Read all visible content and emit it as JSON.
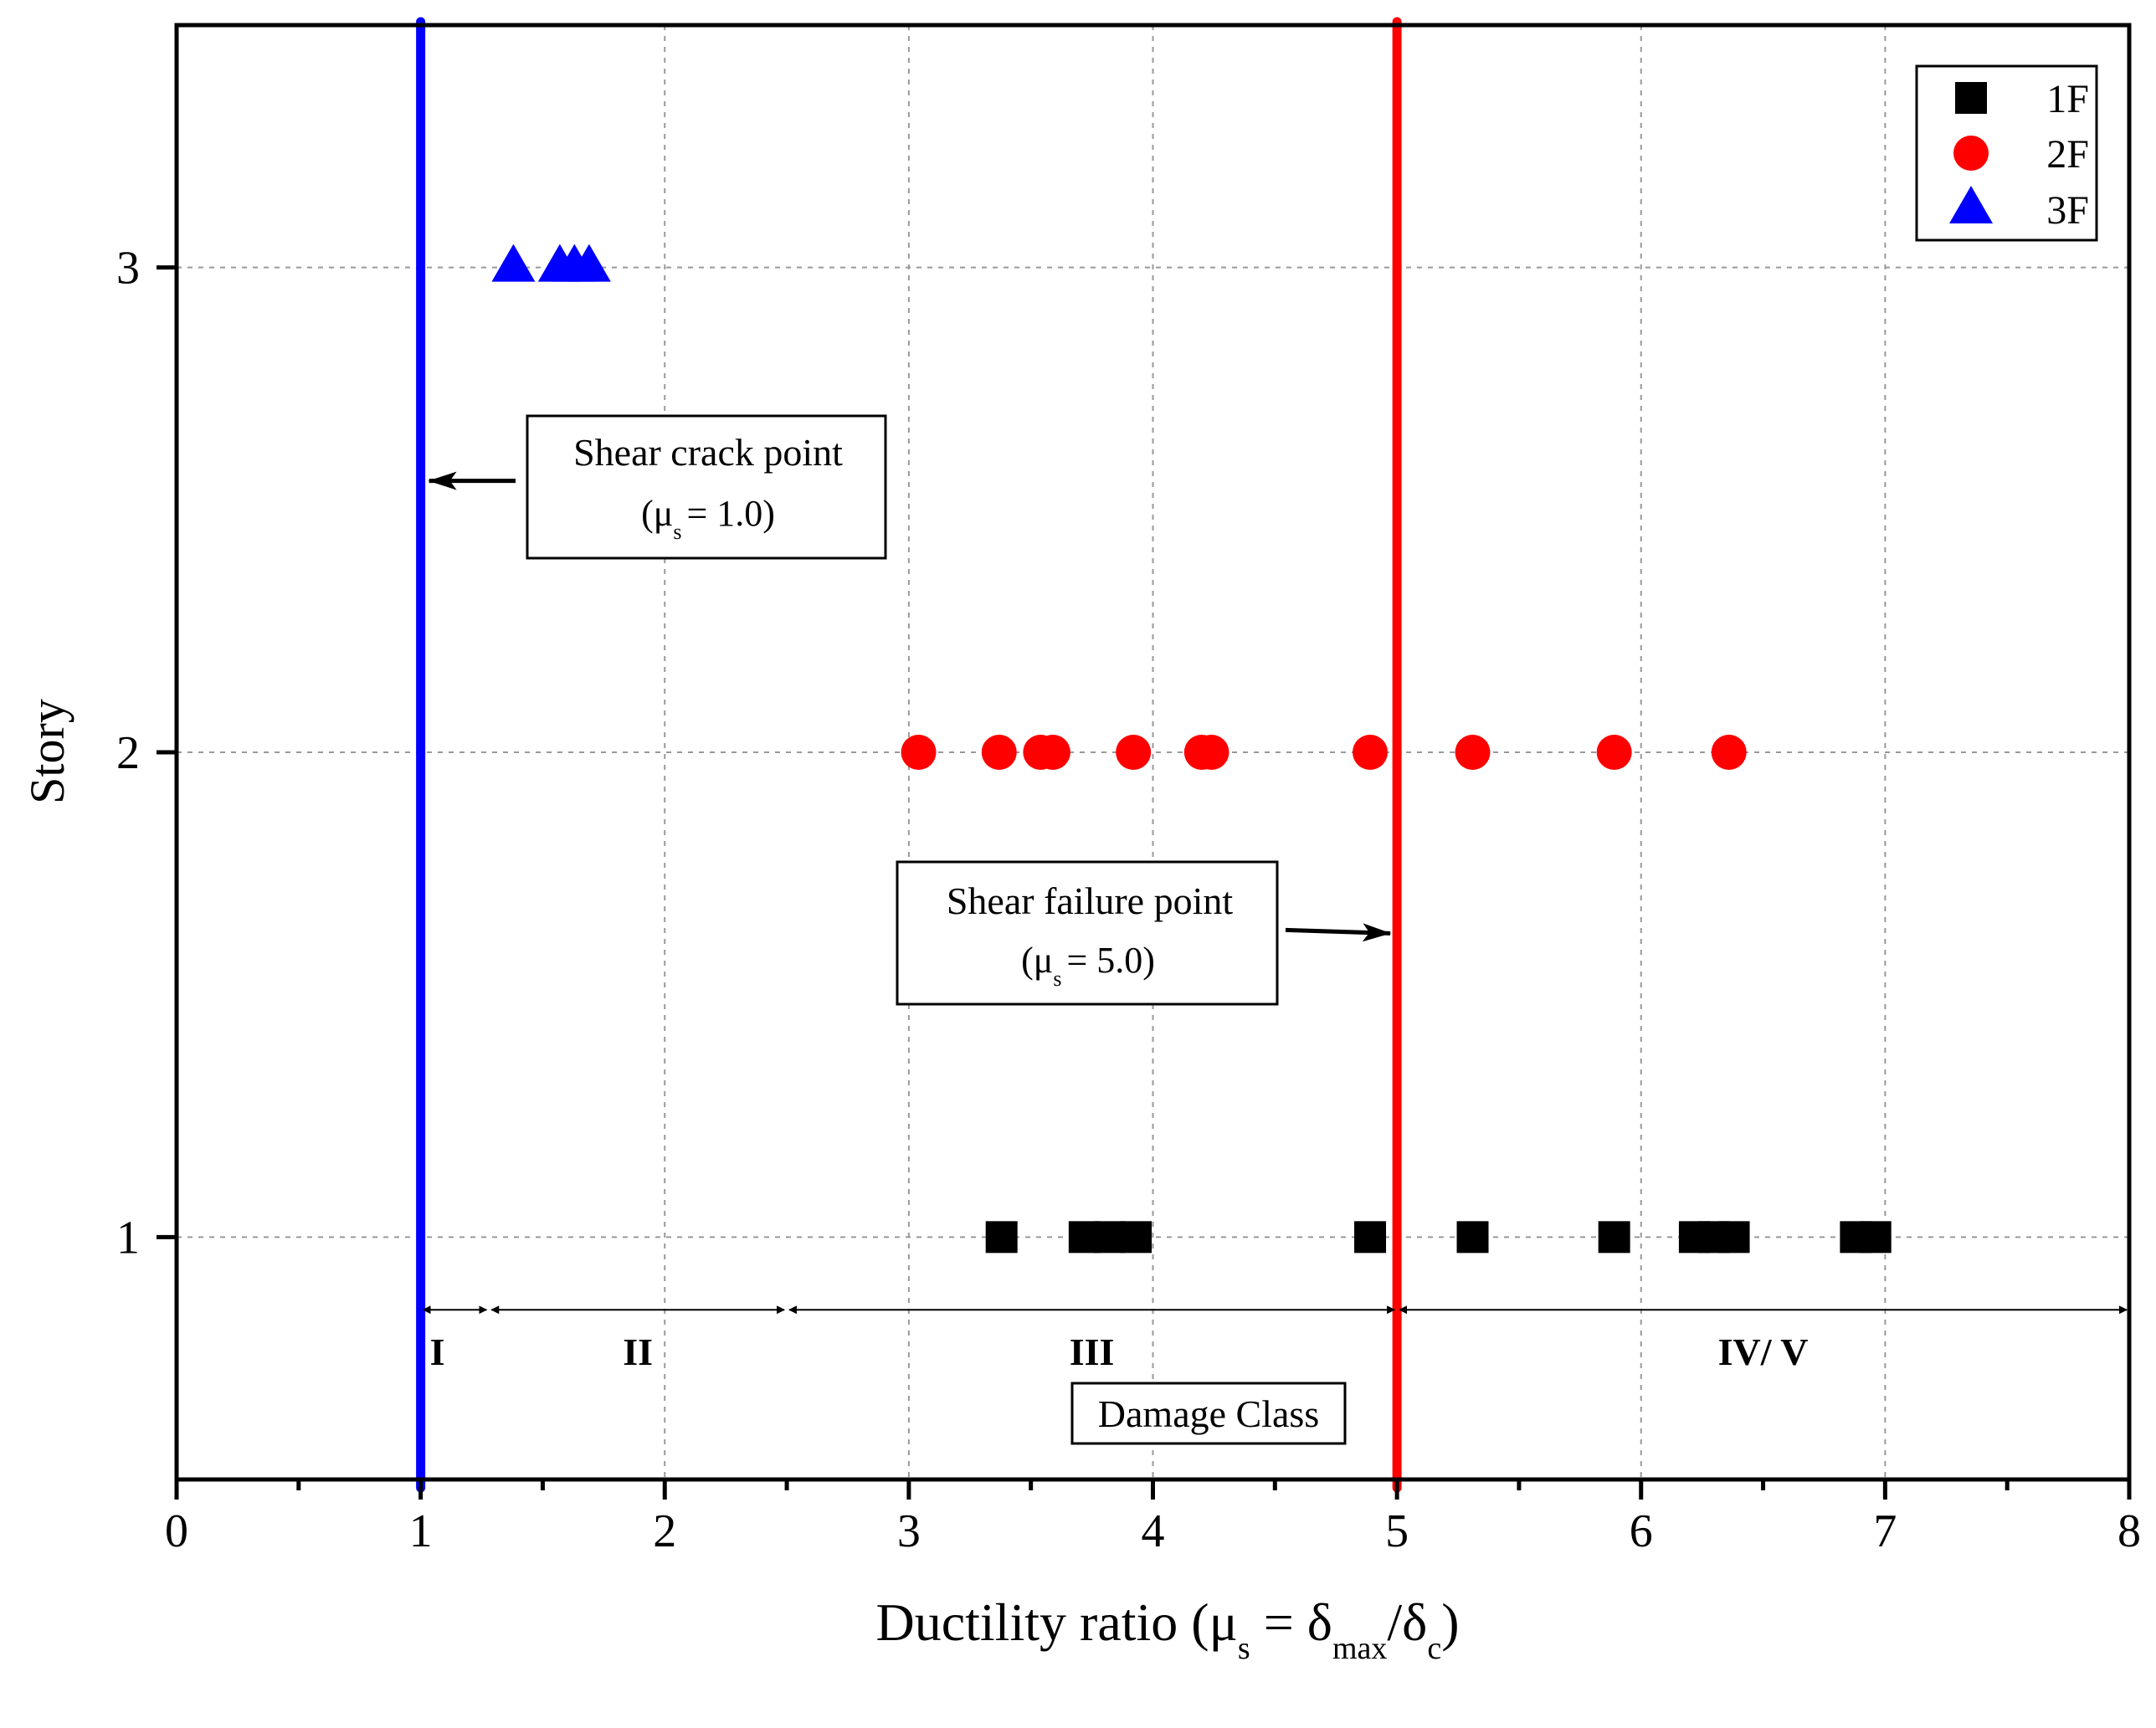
{
  "chart_data": {
    "type": "scatter",
    "title": "",
    "xlabel": {
      "prefix": "Ductility ratio (",
      "mu": "μ",
      "mu_sub": "s",
      "eq": " = δ",
      "delta_sub_max": "max",
      "slash": "/δ",
      "delta_sub_c": "c",
      "suffix": ")"
    },
    "ylabel": "Story",
    "xlim": [
      0,
      8
    ],
    "ylim": [
      0.5,
      3.5
    ],
    "x_ticks": [
      "0",
      "1",
      "2",
      "3",
      "4",
      "5",
      "6",
      "7",
      "8"
    ],
    "y_ticks": [
      "1",
      "2",
      "3"
    ],
    "grid": true,
    "series": [
      {
        "name": "1F",
        "marker": "square",
        "color": "#000000",
        "y": 1,
        "x": [
          3.38,
          3.72,
          3.82,
          3.93,
          4.89,
          5.31,
          5.89,
          6.22,
          6.3,
          6.38,
          6.88,
          6.96
        ]
      },
      {
        "name": "2F",
        "marker": "circle",
        "color": "#ff0000",
        "y": 2,
        "x": [
          3.04,
          3.37,
          3.54,
          3.59,
          3.92,
          4.2,
          4.24,
          4.89,
          5.31,
          5.89,
          6.36
        ]
      },
      {
        "name": "3F",
        "marker": "triangle",
        "color": "#0000ff",
        "y": 3,
        "x": [
          1.38,
          1.57,
          1.63,
          1.69
        ]
      }
    ],
    "reference_lines": [
      {
        "name": "shear-crack-line",
        "x": 1.0,
        "color": "#0000ff"
      },
      {
        "name": "shear-failure-line",
        "x": 5.0,
        "color": "#ff0000"
      }
    ],
    "annotations": {
      "shear_crack": {
        "line1": "Shear crack point",
        "mu": "(μ",
        "sub": "s",
        "value": "= 1.0)",
        "x": 1.0,
        "y": 2.56
      },
      "shear_failure": {
        "line1": "Shear failure point",
        "mu": "(μ",
        "sub": "s",
        "value": "= 5.0)",
        "x": 5.0,
        "y": 1.63
      }
    },
    "damage_classes": {
      "title": "Damage Class",
      "y": 0.85,
      "ranges": [
        {
          "label": "I",
          "from": 1.0,
          "to": 1.28
        },
        {
          "label": "II",
          "from": 1.28,
          "to": 2.5
        },
        {
          "label": "III",
          "from": 2.5,
          "to": 5.0
        },
        {
          "label": "IV/ V",
          "from": 5.0,
          "to": 8.0
        }
      ]
    },
    "legend": {
      "position": "top-right",
      "entries": [
        "1F",
        "2F",
        "3F"
      ]
    }
  }
}
